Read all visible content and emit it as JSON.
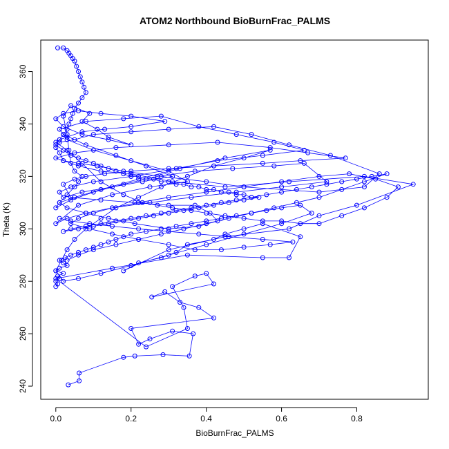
{
  "chart_data": {
    "type": "scatter",
    "title": "ATOM2 Northbound BioBurnFrac_PALMS",
    "xlabel": "BioBurnFrac_PALMS",
    "ylabel": "Theta (K)",
    "xlim": [
      -0.04,
      0.99
    ],
    "ylim": [
      235,
      372
    ],
    "xticks": [
      0.0,
      0.2,
      0.4,
      0.6,
      0.8
    ],
    "xtick_labels": [
      "0.0",
      "0.2",
      "0.4",
      "0.6",
      "0.8"
    ],
    "yticks": [
      240,
      260,
      280,
      300,
      320,
      340,
      360
    ],
    "ytick_labels": [
      "240",
      "260",
      "280",
      "300",
      "320",
      "340",
      "360"
    ],
    "grid": false,
    "legend": "none",
    "style": {
      "color": "#0000ff",
      "marker": "open-circle",
      "line": "connected"
    },
    "series": [
      {
        "x": [
          0.033,
          0.062,
          0.062,
          0.18,
          0.21,
          0.285,
          0.355,
          0.365,
          0.31,
          0.25,
          0.22,
          0.2,
          0.42,
          0.38,
          0.33,
          0.29,
          0.255,
          0.42,
          0.4,
          0.37,
          0.31,
          0.34,
          0.35,
          0.24,
          0.0,
          0.15,
          0.35,
          0.55,
          0.62,
          0.65,
          0.55,
          0.5,
          0.45,
          0.42,
          0.35,
          0.32,
          0.28,
          0.22,
          0.18,
          0.3,
          0.45,
          0.62,
          0.7,
          0.8,
          0.95,
          0.82,
          0.62,
          0.45,
          0.31,
          0.2,
          0.12,
          0.06,
          0.02,
          0.01,
          0.0,
          0.01,
          0.05,
          0.1,
          0.2,
          0.3,
          0.42,
          0.52,
          0.62,
          0.73,
          0.86,
          0.82,
          0.7,
          0.5,
          0.4,
          0.28,
          0.18,
          0.11,
          0.06,
          0.02,
          0.0,
          0.05,
          0.16,
          0.3,
          0.43,
          0.57,
          0.67,
          0.77,
          0.65,
          0.55,
          0.42,
          0.3,
          0.2,
          0.13,
          0.08,
          0.05,
          0.02,
          0.04,
          0.12,
          0.21,
          0.3,
          0.37,
          0.41,
          0.43,
          0.38,
          0.3,
          0.21,
          0.14,
          0.08,
          0.03,
          0.01,
          0.03,
          0.05,
          0.06,
          0.07,
          0.05,
          0.04,
          0.035,
          0.03,
          0.02,
          0.04,
          0.09,
          0.07,
          0.11,
          0.14,
          0.2,
          0.14,
          0.07,
          0.02,
          0.0,
          0.02,
          0.06,
          0.12,
          0.2,
          0.29,
          0.2,
          0.13,
          0.07,
          0.03,
          0.01,
          0.0,
          0.03,
          0.07,
          0.12,
          0.18,
          0.23,
          0.27,
          0.31,
          0.36,
          0.4,
          0.45,
          0.5,
          0.55,
          0.6,
          0.65,
          0.7,
          0.76,
          0.82,
          0.88,
          0.91,
          0.85,
          0.78,
          0.7,
          0.6,
          0.5,
          0.4,
          0.3,
          0.22,
          0.15,
          0.1,
          0.06,
          0.04,
          0.09,
          0.15,
          0.22,
          0.3,
          0.37,
          0.44,
          0.5,
          0.57,
          0.63,
          0.55,
          0.46,
          0.38,
          0.3,
          0.22,
          0.15,
          0.09,
          0.04,
          0.01
        ],
        "y": [
          240.5,
          242,
          245,
          251,
          251.5,
          252,
          251.5,
          260,
          261,
          258,
          256,
          262,
          266,
          270,
          272,
          276,
          274,
          279,
          283,
          282,
          278,
          270,
          262,
          255,
          281,
          285,
          290,
          289,
          289,
          297,
          302,
          300,
          298,
          296,
          294,
          291,
          289,
          287,
          284,
          292,
          297,
          300,
          305,
          309,
          317,
          320,
          318,
          316,
          318,
          321,
          322,
          324,
          326,
          329,
          331,
          333,
          334,
          336,
          337,
          338,
          339,
          336,
          332,
          328,
          321,
          316,
          314,
          316,
          318,
          320,
          322,
          324,
          325,
          326,
          327,
          329,
          331,
          332,
          333,
          331,
          329,
          327,
          326,
          325,
          324,
          323,
          322,
          321,
          320,
          319,
          317,
          312,
          311,
          310,
          309,
          309,
          306,
          303,
          301,
          300,
          302,
          304,
          306,
          308,
          310,
          313,
          316,
          318,
          320,
          322,
          325,
          330,
          336,
          343,
          347,
          344,
          341,
          338,
          335,
          332,
          334,
          336,
          339,
          342,
          344,
          345,
          344,
          343,
          341,
          339,
          338,
          337,
          335,
          334,
          333,
          330,
          325,
          318,
          313,
          310,
          309,
          308,
          307,
          306,
          305,
          304,
          303,
          303,
          302,
          302,
          305,
          308,
          312,
          316,
          319,
          321,
          320,
          318,
          316,
          314,
          312,
          310,
          308,
          306,
          304,
          302,
          300,
          298,
          296,
          294,
          292,
          292,
          293,
          294,
          295,
          296,
          297,
          298,
          299,
          300,
          301,
          302,
          303,
          304
        ]
      },
      {
        "x": [
          0.0,
          0.005,
          0.0,
          0.01,
          0.005,
          0.02,
          0.0,
          0.01,
          0.03,
          0.02,
          0.01,
          0.025,
          0.04,
          0.06,
          0.08,
          0.1,
          0.12,
          0.14,
          0.16,
          0.18,
          0.2,
          0.24,
          0.28,
          0.32,
          0.36,
          0.4,
          0.44,
          0.48,
          0.52,
          0.56,
          0.6,
          0.65,
          0.68,
          0.6,
          0.5,
          0.4,
          0.3,
          0.2,
          0.12,
          0.06,
          0.02,
          0.0,
          0.015,
          0.03,
          0.05,
          0.08,
          0.12,
          0.16,
          0.22,
          0.28,
          0.35,
          0.42,
          0.5,
          0.57,
          0.45,
          0.33,
          0.22,
          0.12,
          0.05,
          0.01,
          0.0,
          0.04,
          0.1,
          0.18,
          0.27,
          0.37,
          0.47,
          0.58,
          0.66,
          0.72,
          0.6,
          0.48,
          0.36,
          0.25,
          0.15,
          0.08,
          0.03,
          0.0,
          0.06,
          0.15,
          0.25,
          0.35,
          0.3,
          0.2,
          0.1,
          0.03,
          0.01,
          0.08,
          0.18,
          0.28,
          0.38,
          0.48,
          0.58,
          0.66,
          0.55,
          0.43,
          0.32,
          0.2,
          0.1,
          0.04,
          0.01,
          0.02,
          0.07,
          0.15,
          0.23,
          0.31,
          0.24,
          0.16,
          0.08,
          0.02
        ],
        "y": [
          278,
          279,
          280,
          281,
          282,
          283,
          284,
          285,
          286,
          287,
          288,
          289,
          290,
          291,
          292,
          293,
          294,
          295,
          296,
          297,
          298,
          299,
          300,
          301,
          302,
          303,
          304,
          305,
          306,
          307,
          308,
          309,
          306,
          302,
          298,
          294,
          290,
          286,
          283,
          281,
          280,
          284,
          288,
          292,
          296,
          300,
          304,
          308,
          312,
          316,
          320,
          324,
          327,
          330,
          327,
          323,
          319,
          315,
          312,
          310,
          308,
          311,
          314,
          317,
          320,
          322,
          323,
          324,
          325,
          318,
          316,
          314,
          312,
          310,
          308,
          306,
          304,
          302,
          309,
          313,
          316,
          318,
          322,
          326,
          330,
          334,
          338,
          341,
          342,
          343,
          339,
          336,
          333,
          330,
          328,
          326,
          323,
          320,
          318,
          316,
          314,
          312,
          314,
          316,
          318,
          320,
          324,
          328,
          332,
          336
        ]
      },
      {
        "x": [
          0.005,
          0.02,
          0.03,
          0.035,
          0.04,
          0.045,
          0.05,
          0.055,
          0.06,
          0.065,
          0.07,
          0.075,
          0.08,
          0.07,
          0.06,
          0.05,
          0.045,
          0.04,
          0.035,
          0.03,
          0.02,
          0.01,
          0.0,
          0.02,
          0.04,
          0.06,
          0.08,
          0.1,
          0.12,
          0.14,
          0.16,
          0.18,
          0.2,
          0.22,
          0.24,
          0.26,
          0.28,
          0.3,
          0.32,
          0.34,
          0.36,
          0.38,
          0.4,
          0.42,
          0.44,
          0.46,
          0.48,
          0.5,
          0.52,
          0.54,
          0.5,
          0.46,
          0.42,
          0.38,
          0.34,
          0.3,
          0.26,
          0.22,
          0.18,
          0.14,
          0.1,
          0.06,
          0.02,
          0.04,
          0.08,
          0.12,
          0.16,
          0.2,
          0.24,
          0.28,
          0.32,
          0.36,
          0.4,
          0.44,
          0.48,
          0.52,
          0.56,
          0.6,
          0.64,
          0.68,
          0.72,
          0.76,
          0.8,
          0.84,
          0.88,
          0.82,
          0.76,
          0.7,
          0.64,
          0.58,
          0.52,
          0.46,
          0.4,
          0.34,
          0.28,
          0.22,
          0.16,
          0.1,
          0.06,
          0.03
        ],
        "y": [
          369,
          369,
          368,
          367,
          366,
          365,
          364,
          362,
          360,
          358,
          356,
          354,
          352,
          350,
          348,
          346,
          344,
          342,
          340,
          338,
          336,
          334,
          332,
          330,
          328,
          327,
          326,
          325,
          324,
          323,
          322,
          321,
          320,
          320,
          319,
          319,
          318,
          318,
          317,
          317,
          316,
          316,
          315,
          315,
          314,
          314,
          313,
          313,
          312,
          312,
          311,
          310,
          309,
          308,
          307,
          306,
          305,
          304,
          303,
          302,
          301,
          300,
          299,
          300,
          301,
          302,
          303,
          304,
          305,
          306,
          307,
          308,
          309,
          310,
          311,
          312,
          313,
          314,
          315,
          316,
          317,
          318,
          319,
          320,
          321,
          318,
          315,
          312,
          310,
          308,
          306,
          304,
          302,
          300,
          298,
          296,
          294,
          292,
          290,
          288
        ]
      }
    ]
  }
}
